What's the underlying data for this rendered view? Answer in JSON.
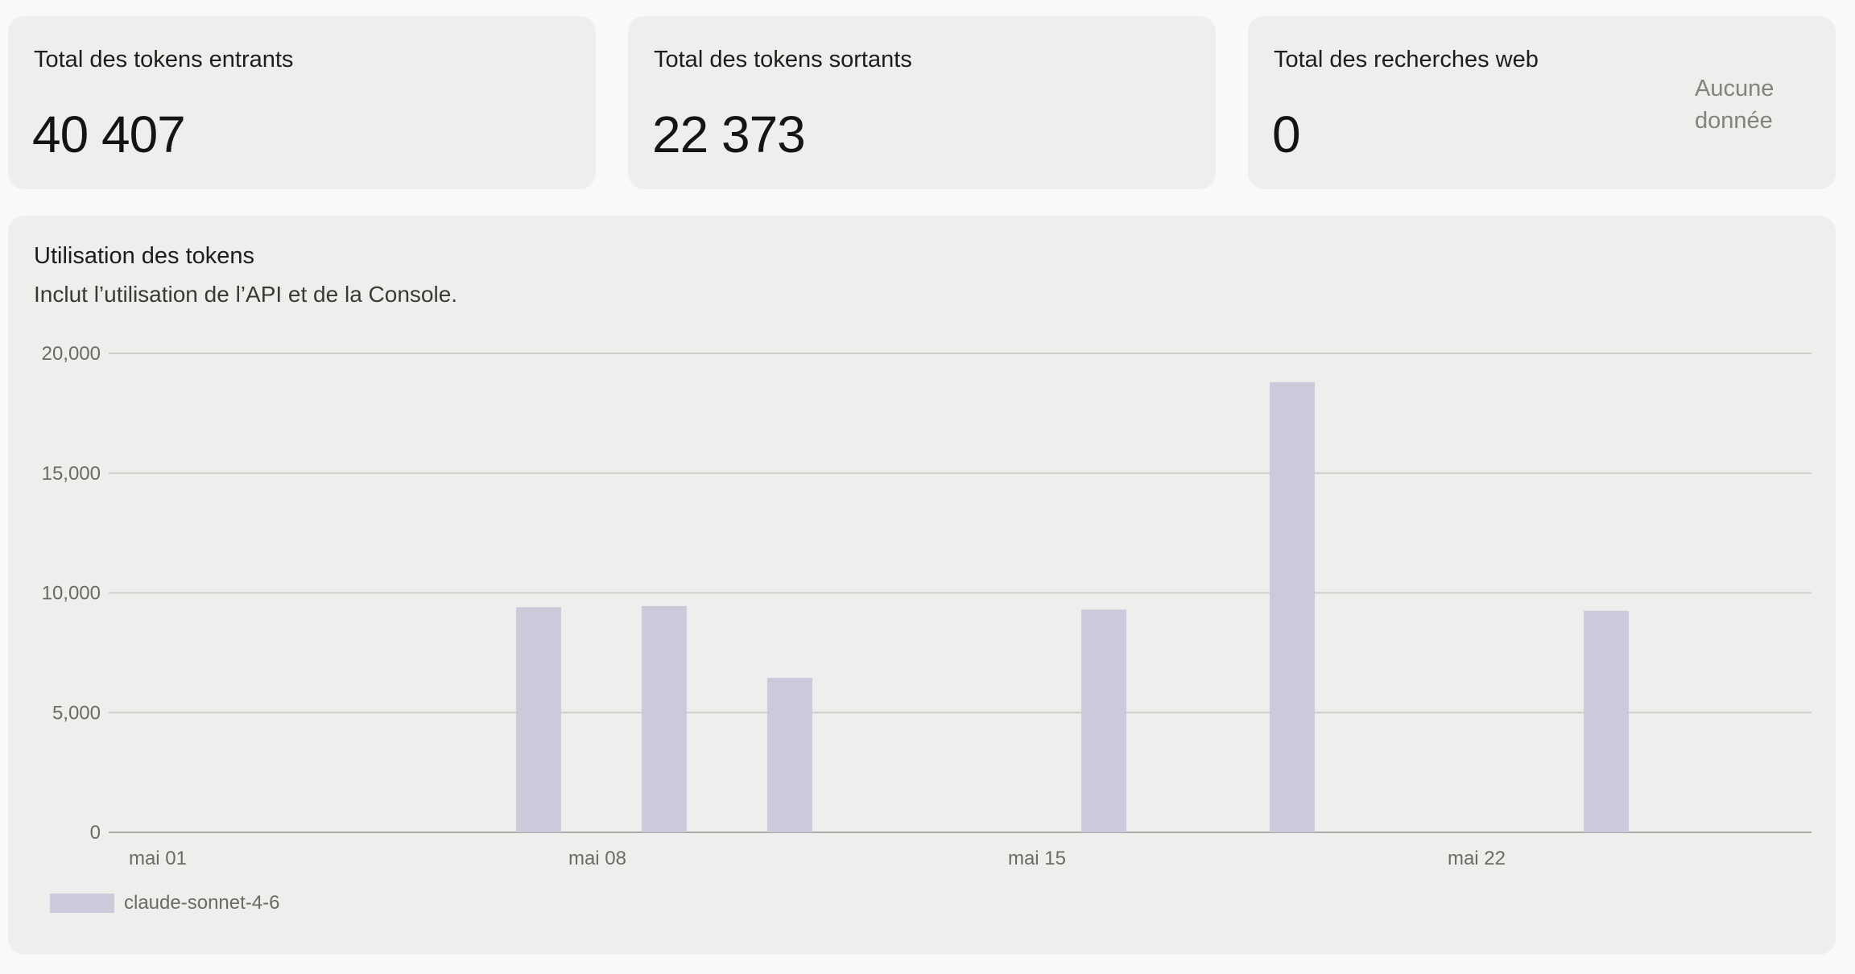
{
  "stats": [
    {
      "title": "Total des tokens entrants",
      "value": "40 407"
    },
    {
      "title": "Total des tokens sortants",
      "value": "22 373"
    },
    {
      "title": "Total des recherches web",
      "value": "0",
      "no_data": "Aucune donnée"
    }
  ],
  "usage": {
    "title": "Utilisation des tokens",
    "subtitle": "Inclut l’utilisation de l’API et de la Console."
  },
  "chart_data": {
    "type": "bar",
    "title": "Utilisation des tokens",
    "subtitle": "Inclut l’utilisation de l’API et de la Console.",
    "ylim": [
      0,
      20000
    ],
    "y_ticks": [
      0,
      5000,
      10000,
      15000,
      20000
    ],
    "y_tick_labels": [
      "0",
      "5,000",
      "10,000",
      "15,000",
      "20,000"
    ],
    "x_tick_labels": [
      "mai 01",
      "mai 08",
      "mai 15",
      "mai 22"
    ],
    "grid": true,
    "legend_position": "bottom-left",
    "bar_color": "#cbcadb",
    "series": [
      {
        "name": "claude-sonnet-4-6",
        "points": [
          {
            "day": 7,
            "value": 9400
          },
          {
            "day": 9,
            "value": 9450
          },
          {
            "day": 11,
            "value": 6450
          },
          {
            "day": 16,
            "value": 9300
          },
          {
            "day": 19,
            "value": 18800
          },
          {
            "day": 24,
            "value": 9250
          }
        ]
      }
    ]
  }
}
